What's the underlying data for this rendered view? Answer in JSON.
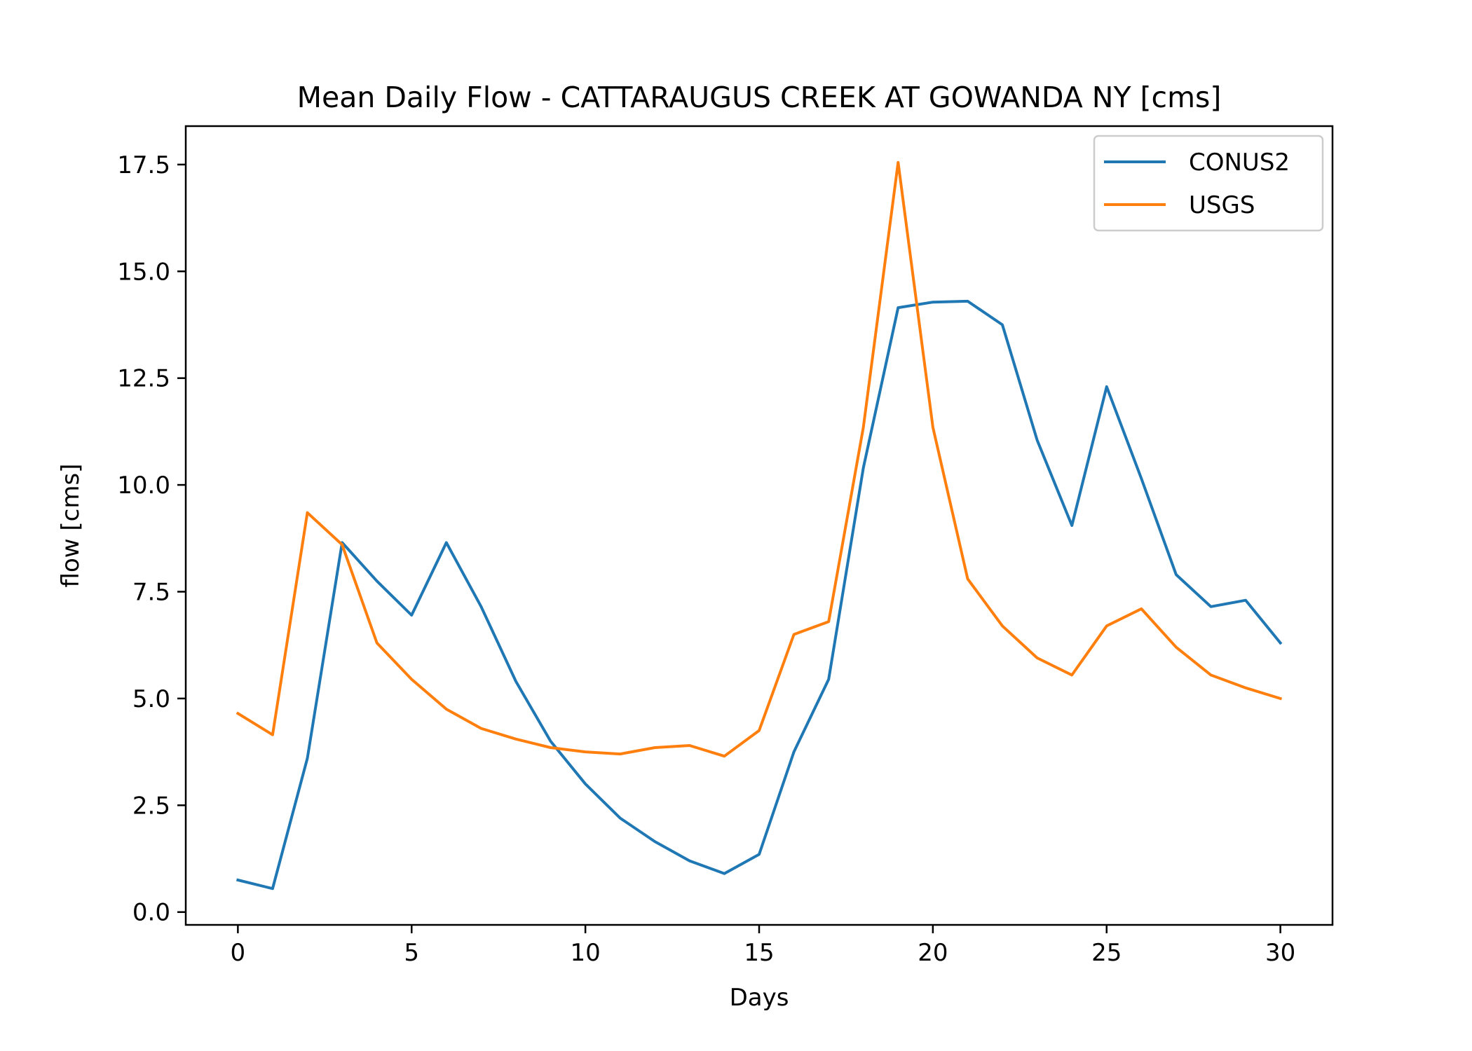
{
  "chart_data": {
    "type": "line",
    "title": "Mean Daily Flow - CATTARAUGUS CREEK AT GOWANDA NY [cms]",
    "xlabel": "Days",
    "ylabel": "flow [cms]",
    "xlim": [
      -1.5,
      31.5
    ],
    "ylim": [
      -0.3,
      18.4
    ],
    "xticks": [
      0,
      5,
      10,
      15,
      20,
      25,
      30
    ],
    "xtick_labels": [
      "0",
      "5",
      "10",
      "15",
      "20",
      "25",
      "30"
    ],
    "yticks": [
      0,
      2.5,
      5,
      7.5,
      10,
      12.5,
      15,
      17.5
    ],
    "ytick_labels": [
      "0.0",
      "2.5",
      "5.0",
      "7.5",
      "10.0",
      "12.5",
      "15.0",
      "17.5"
    ],
    "grid": false,
    "legend_position": "top-right",
    "x": [
      0,
      1,
      2,
      3,
      4,
      5,
      6,
      7,
      8,
      9,
      10,
      11,
      12,
      13,
      14,
      15,
      16,
      17,
      18,
      19,
      20,
      21,
      22,
      23,
      24,
      25,
      26,
      27,
      28,
      29,
      30
    ],
    "series": [
      {
        "name": "CONUS2",
        "color": "#1f77b4",
        "values": [
          0.75,
          0.55,
          3.6,
          8.65,
          7.75,
          6.95,
          8.65,
          7.15,
          5.4,
          4.0,
          3.0,
          2.2,
          1.65,
          1.2,
          0.9,
          1.35,
          3.75,
          5.45,
          10.4,
          14.15,
          14.28,
          14.3,
          13.75,
          11.05,
          9.05,
          12.3,
          10.15,
          7.9,
          7.15,
          7.3,
          6.3
        ]
      },
      {
        "name": "USGS",
        "color": "#ff7f0e",
        "values": [
          4.65,
          4.15,
          9.35,
          8.6,
          6.3,
          5.45,
          4.75,
          4.3,
          4.05,
          3.85,
          3.75,
          3.7,
          3.85,
          3.9,
          3.65,
          4.25,
          6.5,
          6.8,
          11.35,
          17.55,
          11.35,
          7.8,
          6.7,
          5.95,
          5.55,
          6.7,
          7.1,
          6.2,
          5.55,
          5.25,
          5.0
        ]
      }
    ]
  }
}
